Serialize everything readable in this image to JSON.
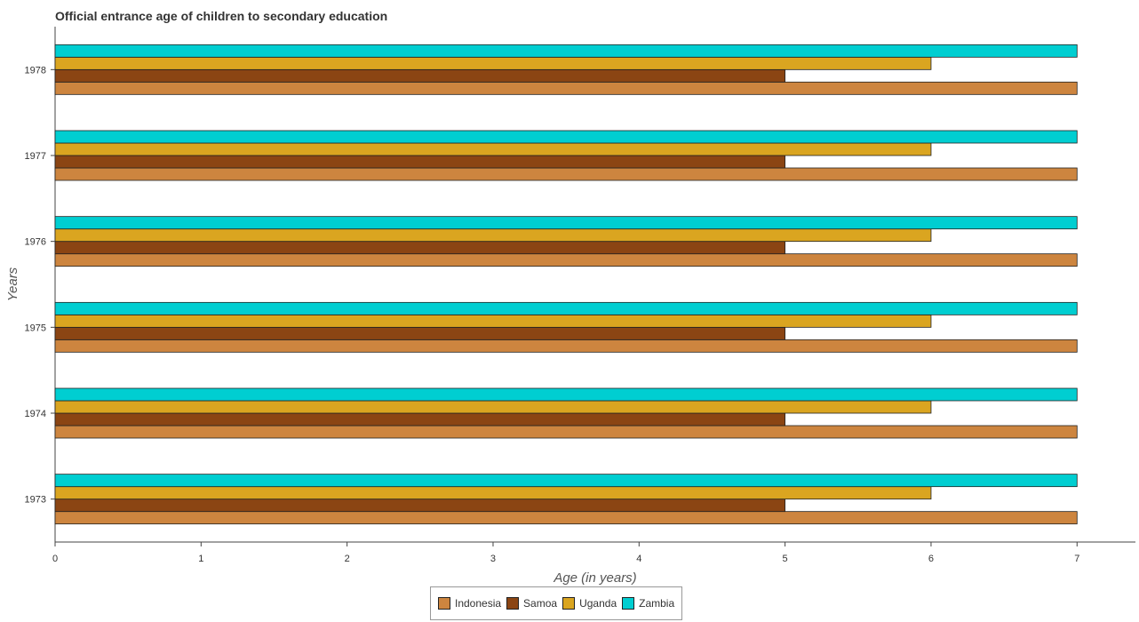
{
  "chart_data": {
    "type": "bar",
    "orientation": "horizontal",
    "title": "Official entrance age of children to secondary education",
    "xlabel": "Age (in years)",
    "ylabel": "Years",
    "categories": [
      "1973",
      "1974",
      "1975",
      "1976",
      "1977",
      "1978"
    ],
    "series": [
      {
        "name": "Indonesia",
        "color": "#cd853f",
        "values": [
          7,
          7,
          7,
          7,
          7,
          7
        ]
      },
      {
        "name": "Samoa",
        "color": "#8b4513",
        "values": [
          5,
          5,
          5,
          5,
          5,
          5
        ]
      },
      {
        "name": "Uganda",
        "color": "#daa520",
        "values": [
          6,
          6,
          6,
          6,
          6,
          6
        ]
      },
      {
        "name": "Zambia",
        "color": "#00ced1",
        "values": [
          7,
          7,
          7,
          7,
          7,
          7
        ]
      }
    ],
    "xlim": [
      0,
      7.4
    ],
    "xticks": [
      0,
      1,
      2,
      3,
      4,
      5,
      6,
      7
    ],
    "grid": false,
    "legend_position": "bottom-center"
  }
}
